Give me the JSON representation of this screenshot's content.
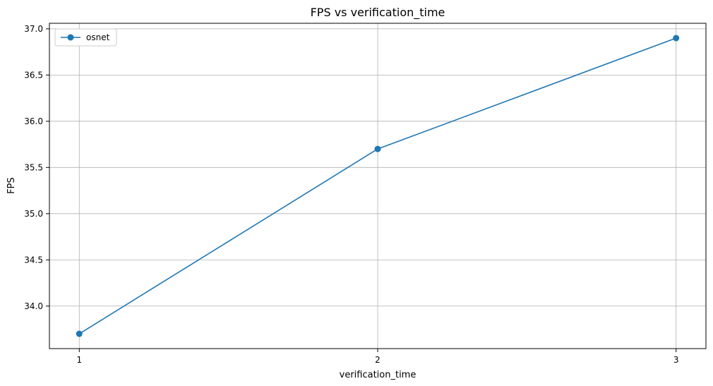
{
  "chart_data": {
    "type": "line",
    "title": "FPS vs verification_time",
    "xlabel": "verification_time",
    "ylabel": "FPS",
    "x_ticks": [
      "1",
      "2",
      "3"
    ],
    "y_ticks": [
      "34.0",
      "34.5",
      "35.0",
      "35.5",
      "36.0",
      "36.5",
      "37.0"
    ],
    "series": [
      {
        "name": "osnet",
        "color": "#1f77b4",
        "marker": "circle",
        "x": [
          1,
          2,
          3
        ],
        "y": [
          33.7,
          35.7,
          36.9
        ]
      }
    ],
    "xlim": [
      0.9,
      3.1
    ],
    "ylim": [
      33.54,
      37.06
    ],
    "grid": true,
    "legend_position": "upper-left"
  }
}
